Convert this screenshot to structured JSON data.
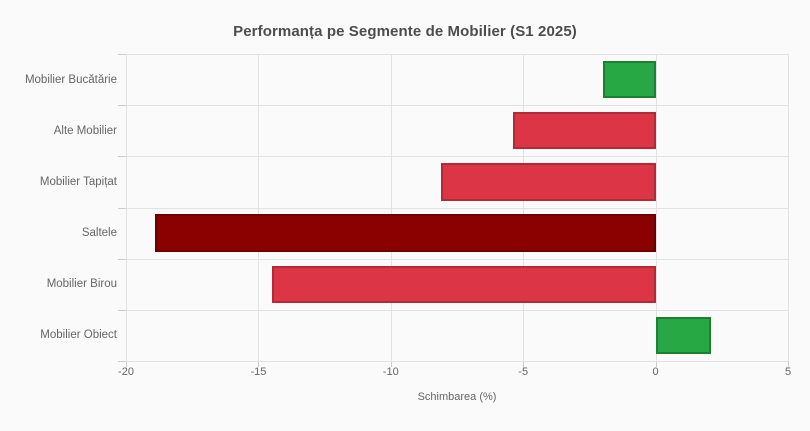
{
  "chart_data": {
    "type": "bar",
    "orientation": "horizontal",
    "title": "Performanța pe Segmente de Mobilier (S1 2025)",
    "xlabel": "Schimbarea (%)",
    "ylabel": "",
    "categories": [
      "Mobilier Bucătărie",
      "Alte Mobilier",
      "Mobilier Tapițat",
      "Saltele",
      "Mobilier Birou",
      "Mobilier Obiect"
    ],
    "values": [
      -2.0,
      -5.4,
      -8.1,
      -18.9,
      -14.5,
      2.1
    ],
    "series": [
      {
        "name": "Schimbarea (%)",
        "values": [
          -2.0,
          -5.4,
          -8.1,
          -18.9,
          -14.5,
          2.1
        ]
      }
    ],
    "xlim": [
      -20,
      5
    ],
    "xticks": [
      -20,
      -15,
      -10,
      -5,
      0,
      5
    ],
    "grid": true,
    "legend_position": "none",
    "bar_colors": [
      {
        "fill": "#28a745",
        "border": "#1e7e34"
      },
      {
        "fill": "#dc3545",
        "border": "#b02a37"
      },
      {
        "fill": "#dc3545",
        "border": "#b02a37"
      },
      {
        "fill": "#8b0000",
        "border": "#6b0000"
      },
      {
        "fill": "#dc3545",
        "border": "#b02a37"
      },
      {
        "fill": "#28a745",
        "border": "#1e7e34"
      }
    ],
    "colors": {
      "background": "#fafafa",
      "gridline": "#e2e2e2",
      "tick_mark": "#cccccc",
      "title_text": "#4d4d4d",
      "axis_text": "#666666"
    }
  }
}
